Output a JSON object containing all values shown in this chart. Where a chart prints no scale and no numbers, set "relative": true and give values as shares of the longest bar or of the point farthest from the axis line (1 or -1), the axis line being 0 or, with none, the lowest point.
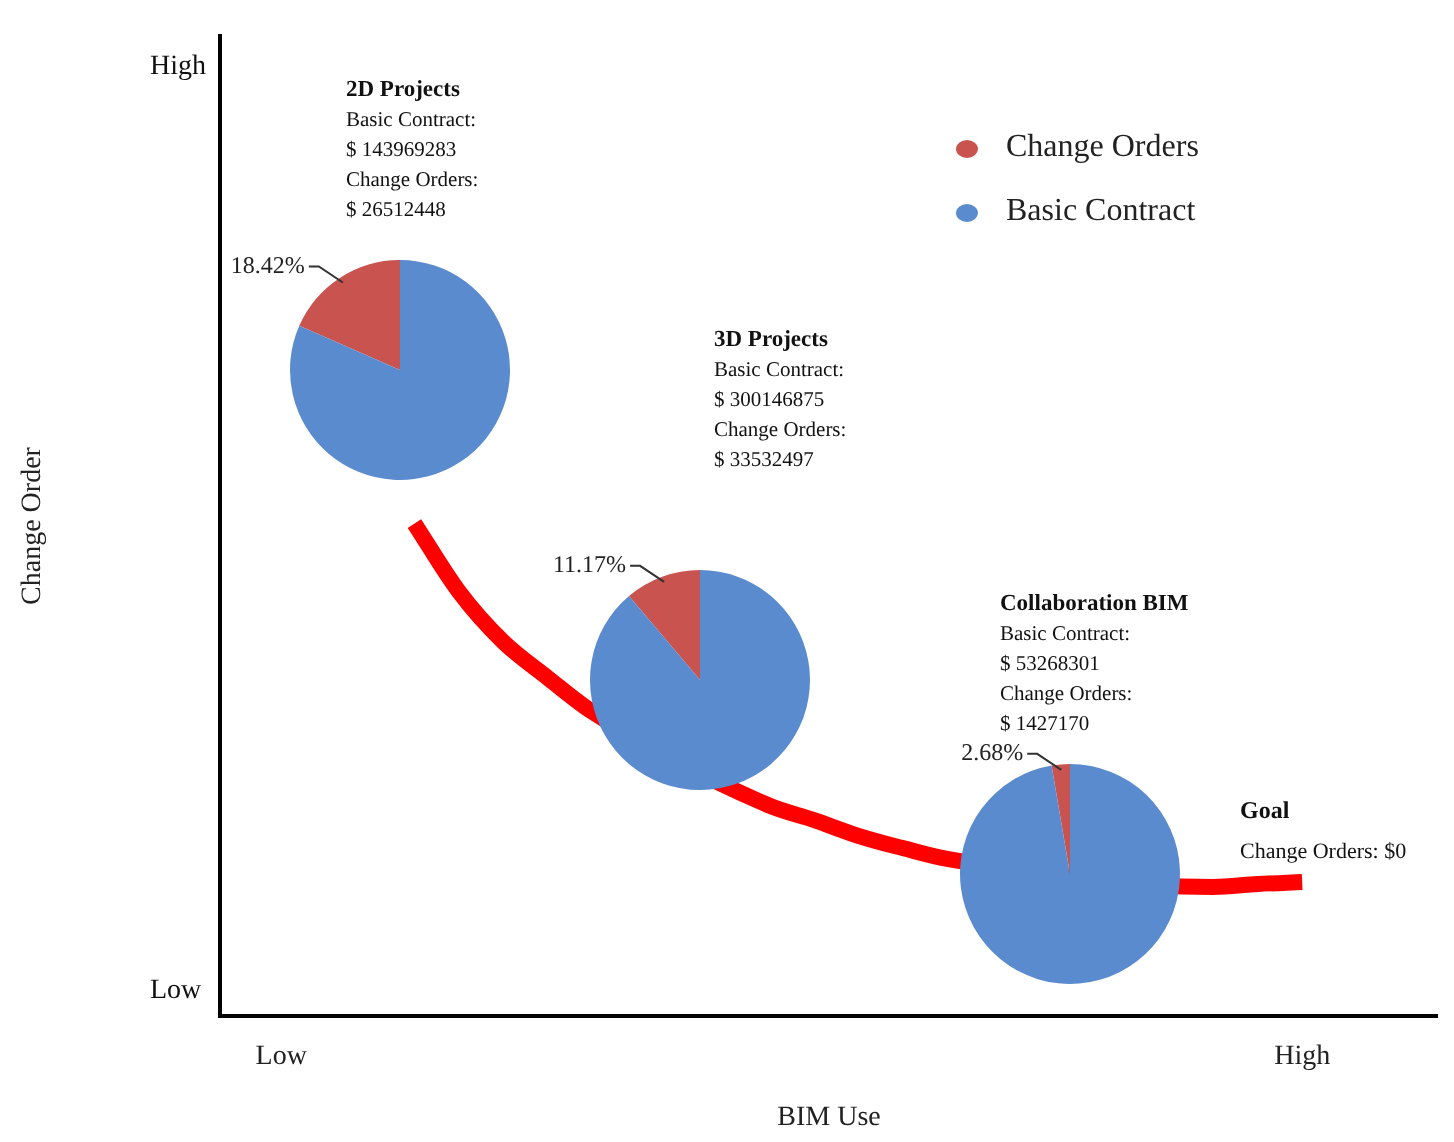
{
  "chart_data": [
    {
      "type": "line",
      "xlabel": "BIM Use",
      "ylabel": "Change Order",
      "relative": true,
      "categories": [
        "Low",
        null,
        null,
        null,
        null,
        null,
        null,
        null,
        null,
        null,
        null,
        null,
        null,
        null,
        null,
        null,
        null,
        null,
        null,
        null,
        null,
        null,
        null,
        "High"
      ],
      "grid": false,
      "legend": false,
      "marker": "none",
      "series": [
        {
          "color": "#ff0000",
          "values": [
            null,
            null,
            null,
            1,
            0.862,
            0.76,
            0.687,
            0.618,
            null,
            null,
            null,
            0.427,
            0.398,
            0.366,
            0.341,
            0.319,
            null,
            null,
            null,
            null,
            null,
            0.262,
            0.268,
            0.272
          ]
        }
      ],
      "annotations": [
        "High",
        "Low",
        "Goal",
        "Change Orders: $0"
      ]
    },
    {
      "type": "pie",
      "title": "2D Projects",
      "categories": [
        "Change Orders",
        "Basic Contract"
      ],
      "values": [
        18.42,
        81.58
      ],
      "colors": [
        "#c9534f",
        "#5b8bcf"
      ],
      "value_labels": [
        "18.42%",
        null
      ],
      "legend": "top right",
      "annotations": [
        "Basic Contract:",
        "$ 143969283",
        "Change Orders:",
        "$ 26512448"
      ]
    },
    {
      "type": "pie",
      "title": "3D Projects",
      "categories": [
        null,
        null
      ],
      "values": [
        11.17,
        88.83
      ],
      "colors": [
        "#c9534f",
        "#5b8bcf"
      ],
      "value_labels": [
        "11.17%",
        null
      ],
      "annotations": [
        "Basic Contract:",
        "$ 300146875",
        "Change Orders:",
        "$ 33532497"
      ]
    },
    {
      "type": "pie",
      "title": "Collaboration BIM",
      "categories": [
        null,
        null
      ],
      "values": [
        2.68,
        97.32
      ],
      "colors": [
        "#c9534f",
        "#5b8bcf"
      ],
      "value_labels": [
        "2.68%",
        null
      ],
      "annotations": [
        "Basic Contract:",
        "$ 53268301",
        "Change Orders:",
        "$ 1427170"
      ]
    }
  ]
}
